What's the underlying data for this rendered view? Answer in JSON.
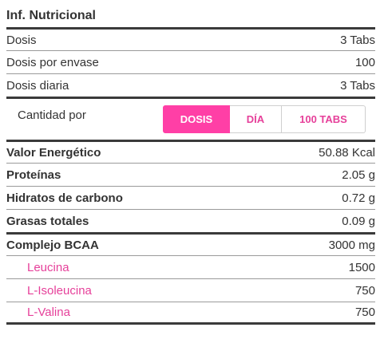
{
  "header": {
    "title": "Inf. Nutricional"
  },
  "serving": [
    {
      "label": "Dosis",
      "value": "3 Tabs"
    },
    {
      "label": "Dosis por envase",
      "value": "100"
    },
    {
      "label": "Dosis diaria",
      "value": "3 Tabs"
    }
  ],
  "selector": {
    "label": "Cantidad por",
    "options": [
      "DOSIS",
      "DÍA",
      "100 TABS"
    ],
    "active": "DOSIS"
  },
  "nutrients": [
    {
      "label": "Valor Energético",
      "value": "50.88 Kcal"
    },
    {
      "label": "Proteínas",
      "value": "2.05 g"
    },
    {
      "label": "Hidratos de carbono",
      "value": "0.72 g"
    },
    {
      "label": "Grasas totales",
      "value": "0.09 g"
    }
  ],
  "complex": {
    "label": "Complejo BCAA",
    "value": "3000 mg",
    "items": [
      {
        "label": "Leucina",
        "value": "1500"
      },
      {
        "label": "L-Isoleucina",
        "value": "750"
      },
      {
        "label": "L-Valina",
        "value": "750"
      }
    ]
  },
  "colors": {
    "accent": "#ff3fa6",
    "accent_text": "#e6409a",
    "rule": "#3a3a3a"
  }
}
